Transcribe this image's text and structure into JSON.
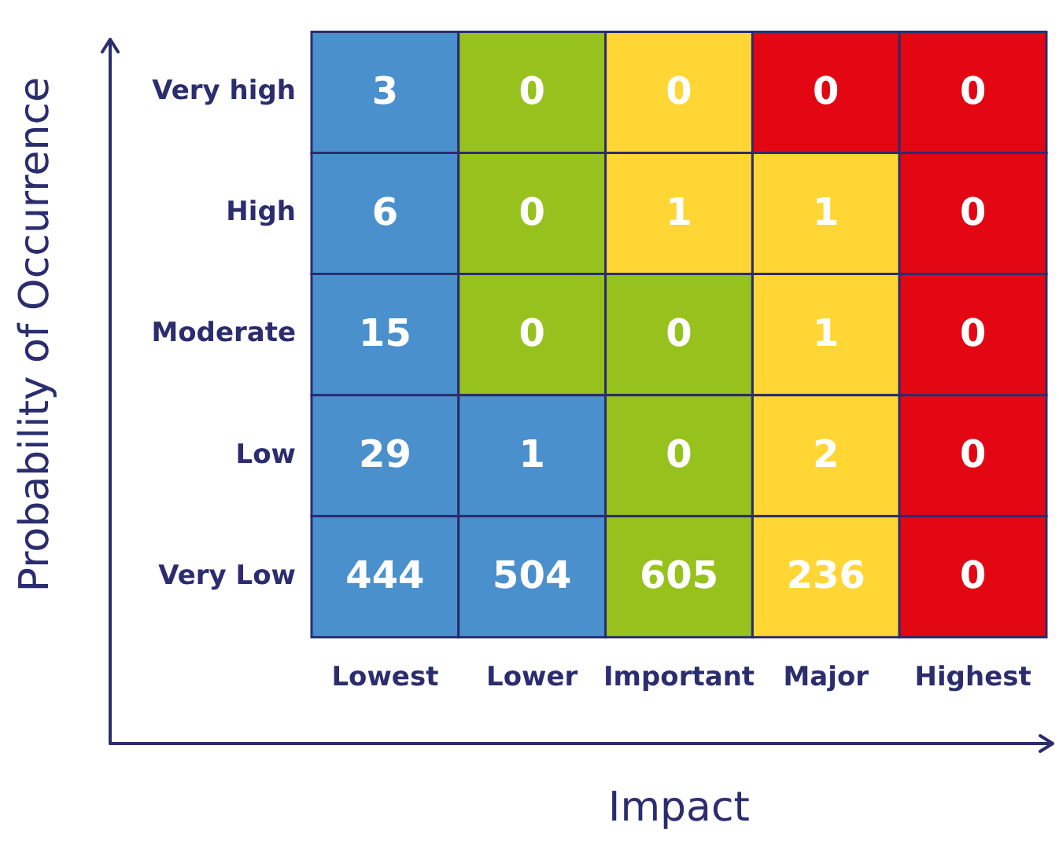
{
  "chart_data": {
    "type": "heatmap",
    "xlabel": "Impact",
    "ylabel": "Probability of Occurrence",
    "categories": [
      "Lowest",
      "Lower",
      "Important",
      "Major",
      "Highest"
    ],
    "y_categories": [
      "Very high",
      "High",
      "Moderate",
      "Low",
      "Very Low"
    ],
    "cells": [
      [
        3,
        0,
        0,
        0,
        0
      ],
      [
        6,
        0,
        1,
        1,
        0
      ],
      [
        15,
        0,
        0,
        1,
        0
      ],
      [
        29,
        1,
        0,
        2,
        0
      ],
      [
        444,
        504,
        605,
        236,
        0
      ]
    ],
    "colors": [
      [
        "#4a90cd",
        "#97c21e",
        "#ffd633",
        "#e30613",
        "#e30613"
      ],
      [
        "#4a90cd",
        "#97c21e",
        "#ffd633",
        "#ffd633",
        "#e30613"
      ],
      [
        "#4a90cd",
        "#97c21e",
        "#97c21e",
        "#ffd633",
        "#e30613"
      ],
      [
        "#4a90cd",
        "#4a90cd",
        "#97c21e",
        "#ffd633",
        "#e30613"
      ],
      [
        "#4a90cd",
        "#4a90cd",
        "#97c21e",
        "#ffd633",
        "#e30613"
      ]
    ],
    "data_labels": true
  }
}
